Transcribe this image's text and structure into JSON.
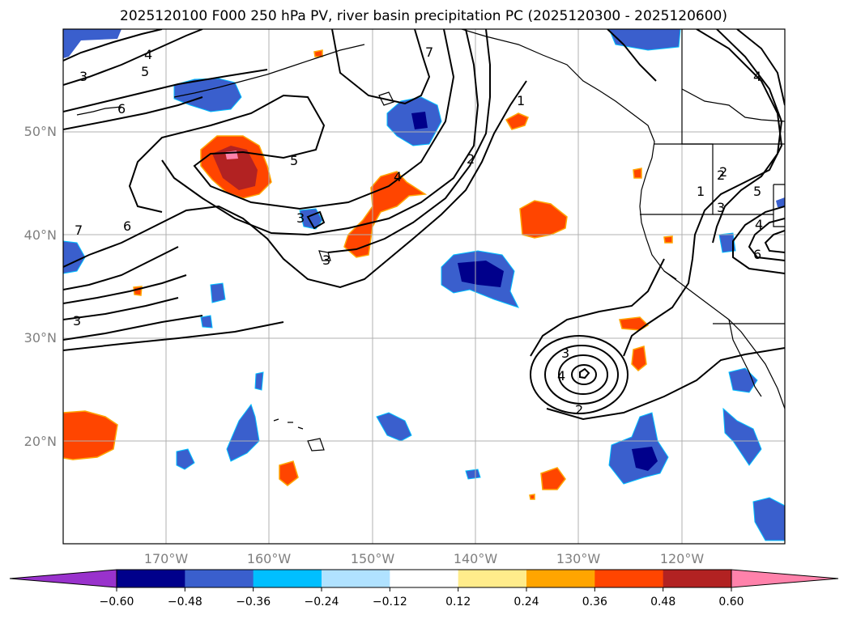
{
  "title": "2025120100 F000 250 hPa PV, river basin precipitation PC (2025120300 - 2025120600)",
  "lat_labels": [
    "50°N",
    "40°N",
    "30°N",
    "20°N"
  ],
  "lon_labels": [
    "170°W",
    "160°W",
    "150°W",
    "140°W",
    "130°W",
    "120°W"
  ],
  "colorbar": {
    "ticks": [
      "−0.60",
      "−0.48",
      "−0.36",
      "−0.24",
      "−0.12",
      "0.12",
      "0.24",
      "0.36",
      "0.48",
      "0.60"
    ],
    "colors": [
      "#9932cc",
      "#00008b",
      "#3a5fcd",
      "#00bfff",
      "#b0e2ff",
      "#ffffff",
      "#ffec8b",
      "#ffa500",
      "#ff4500",
      "#b22222",
      "#ff82ab"
    ]
  },
  "pv_contour_labels": [
    "3",
    "4",
    "5",
    "6",
    "7",
    "5",
    "4",
    "2",
    "1",
    "7",
    "6",
    "3",
    "3",
    "3",
    "2",
    "4",
    "2",
    "1",
    "2",
    "3",
    "4",
    "5",
    "6",
    "4",
    "3"
  ]
}
